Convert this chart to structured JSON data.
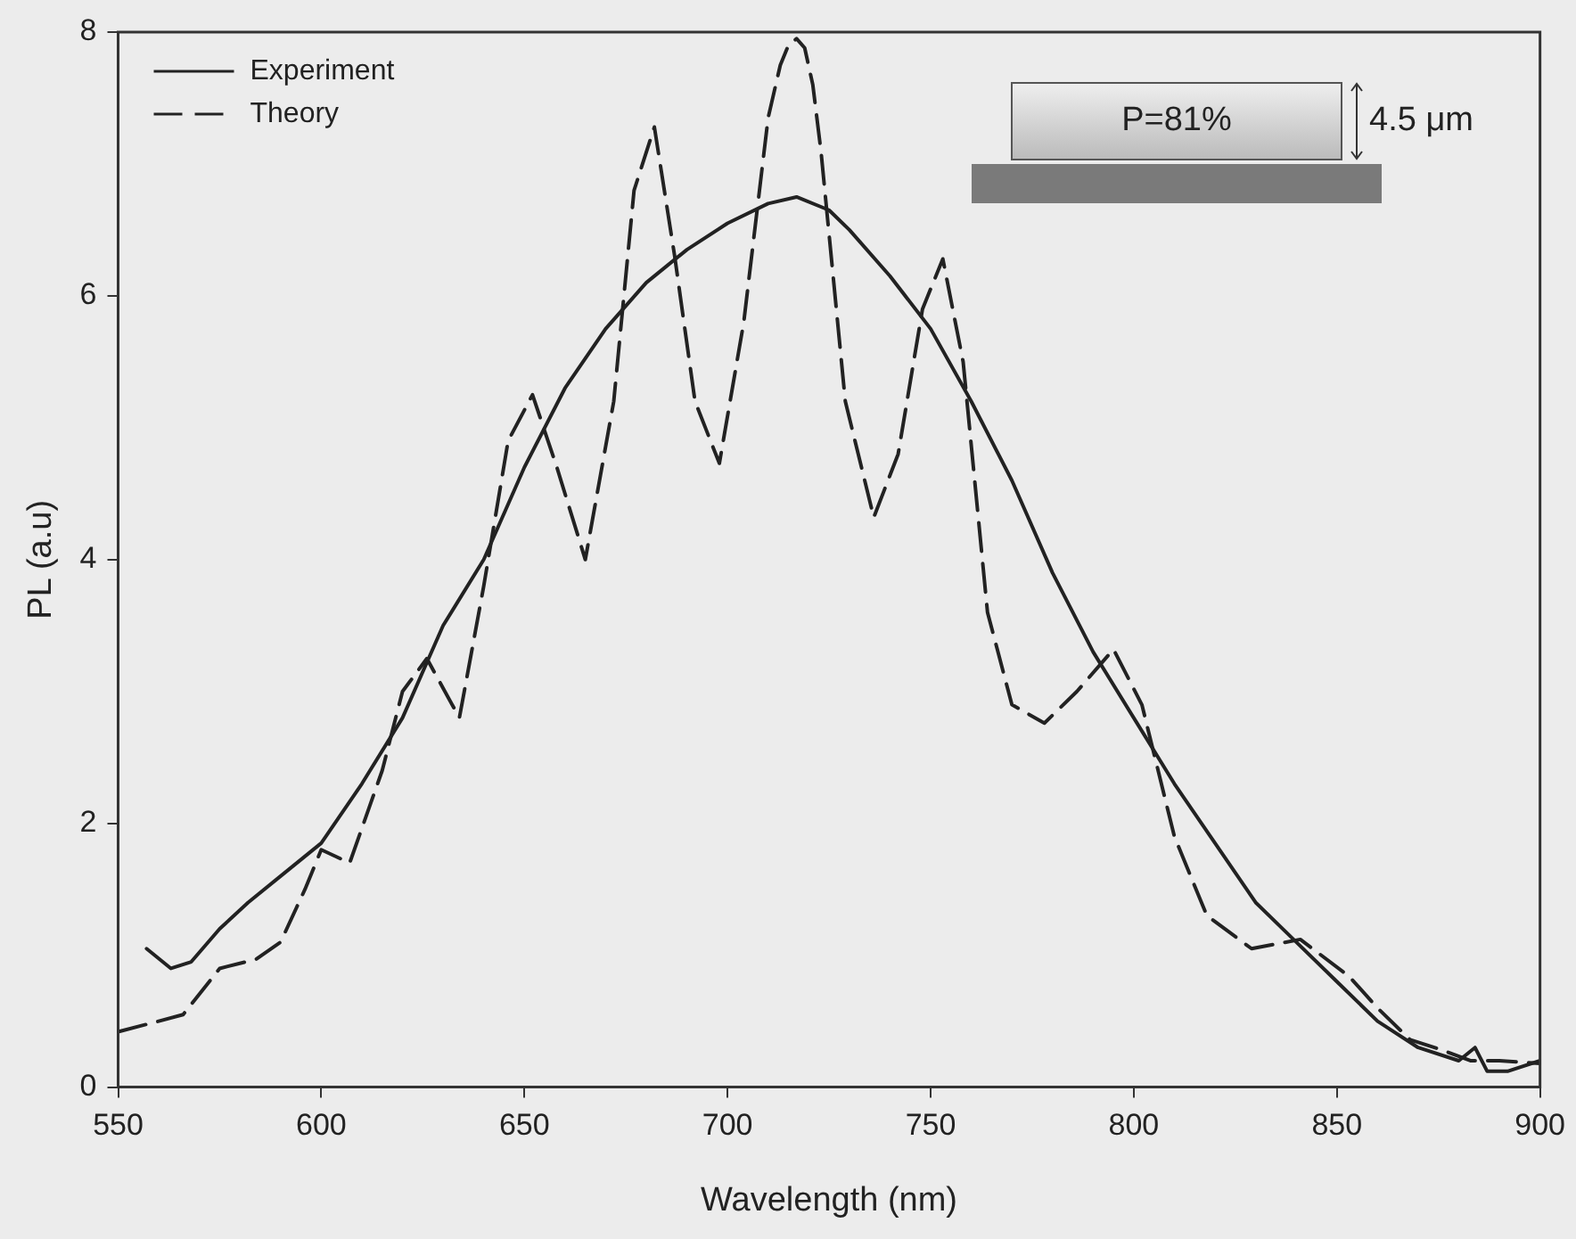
{
  "chart_data": {
    "type": "line",
    "xlabel": "Wavelength (nm)",
    "ylabel": "PL (a.u)",
    "xlim": [
      550,
      900
    ],
    "xticks": [
      550,
      600,
      650,
      700,
      750,
      800,
      850,
      900
    ],
    "ylim": [
      0,
      8
    ],
    "yticks": [
      0,
      2,
      4,
      6,
      8
    ],
    "grid": false,
    "legend": "top left",
    "marker": "none",
    "annotations": [
      "P=81%",
      "4.5 μm"
    ],
    "series": [
      {
        "name": "Experiment",
        "color": "#222222",
        "line_style": "solid",
        "x": [
          557,
          563,
          568,
          575,
          582,
          590,
          600,
          610,
          620,
          630,
          640,
          650,
          660,
          670,
          680,
          690,
          700,
          710,
          717,
          725,
          730,
          740,
          750,
          760,
          770,
          780,
          790,
          800,
          810,
          820,
          830,
          840,
          850,
          860,
          870,
          880,
          884,
          887,
          892,
          900
        ],
        "values": [
          1.05,
          0.9,
          0.95,
          1.2,
          1.4,
          1.6,
          1.85,
          2.3,
          2.8,
          3.5,
          4.0,
          4.7,
          5.3,
          5.75,
          6.1,
          6.35,
          6.55,
          6.7,
          6.75,
          6.65,
          6.5,
          6.15,
          5.75,
          5.2,
          4.6,
          3.9,
          3.3,
          2.8,
          2.3,
          1.85,
          1.4,
          1.1,
          0.8,
          0.5,
          0.3,
          0.2,
          0.3,
          0.12,
          0.12,
          0.2
        ]
      },
      {
        "name": "Theory",
        "color": "#222222",
        "line_style": "dashed",
        "x": [
          550,
          560,
          566,
          575,
          584,
          590,
          596,
          600,
          607,
          615,
          620,
          626,
          634,
          640,
          646,
          652,
          658,
          665,
          672,
          677,
          682,
          687,
          692,
          698,
          704,
          710,
          713,
          715,
          717,
          719,
          721,
          723,
          729,
          736,
          742,
          748,
          753,
          758,
          764,
          770,
          778,
          786,
          795,
          802,
          810,
          818,
          829,
          841,
          853,
          860,
          868,
          876,
          883,
          890,
          900
        ],
        "values": [
          0.42,
          0.5,
          0.55,
          0.9,
          0.97,
          1.1,
          1.5,
          1.8,
          1.7,
          2.4,
          3.0,
          3.25,
          2.8,
          3.8,
          4.9,
          5.25,
          4.7,
          4.0,
          5.2,
          6.8,
          7.28,
          6.3,
          5.2,
          4.73,
          5.8,
          7.35,
          7.75,
          7.9,
          7.95,
          7.88,
          7.6,
          7.1,
          5.2,
          4.32,
          4.8,
          5.9,
          6.28,
          5.5,
          3.6,
          2.9,
          2.76,
          3.0,
          3.32,
          2.9,
          1.9,
          1.3,
          1.05,
          1.12,
          0.84,
          0.6,
          0.36,
          0.28,
          0.2,
          0.2,
          0.18
        ]
      }
    ]
  }
}
